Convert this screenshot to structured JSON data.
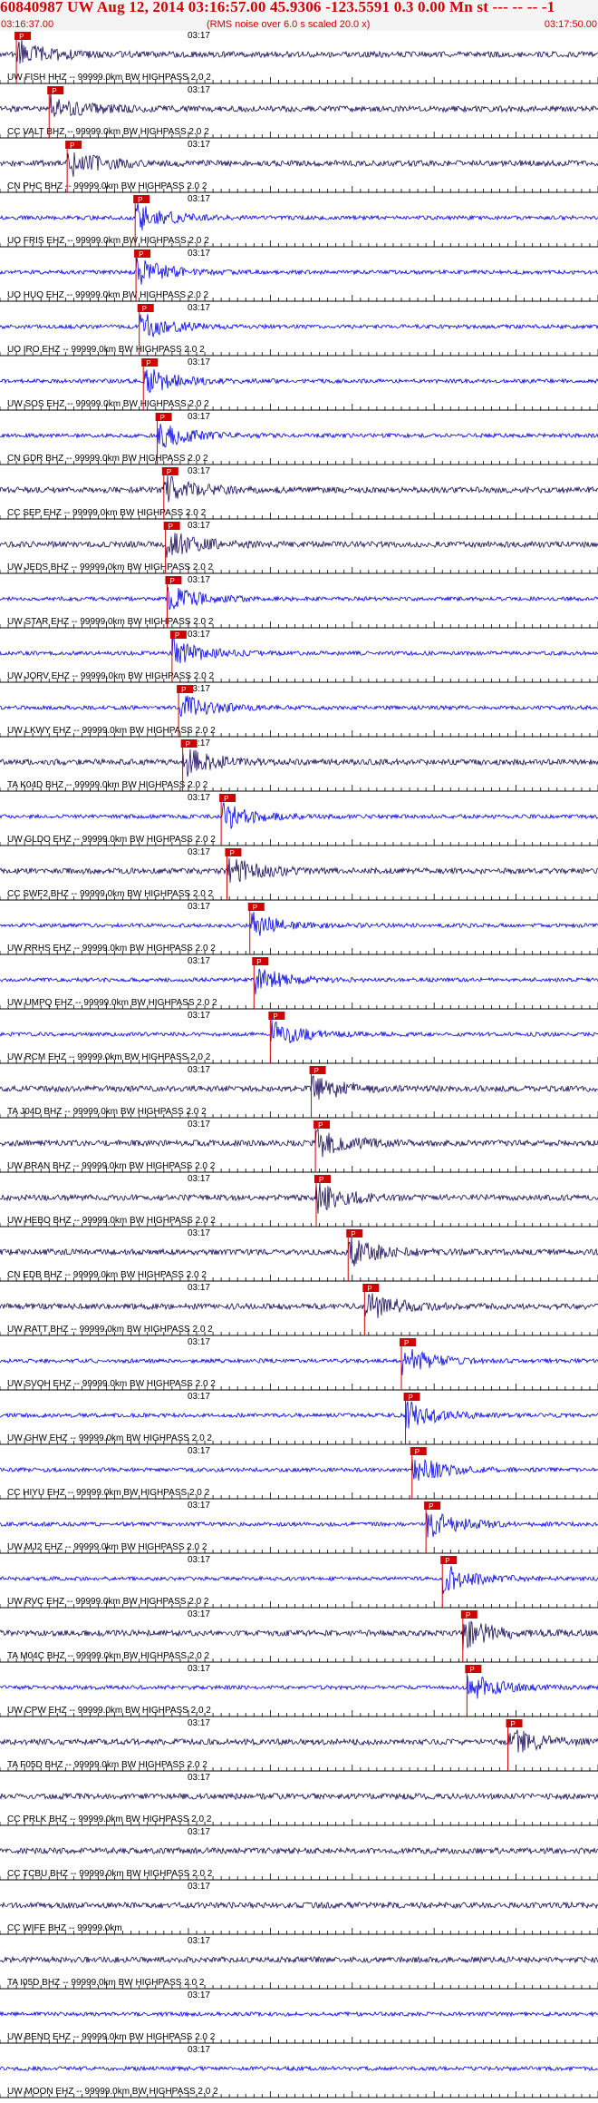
{
  "header": {
    "title": "60840987 UW Aug 12, 2014 03:16:57.00    45.9306 -123.5591  0.3 0.00 Mn st --- -- --  -1",
    "start_time": "03:16:37.00",
    "rms_note": "(RMS noise over 6.0 s scaled 20.0 x)",
    "end_time": "03:17:50.00"
  },
  "chart_data": {
    "type": "line",
    "x_unit": "time",
    "time_window": [
      "03:16:37.00",
      "03:17:50.00"
    ],
    "minute_mark_label": "03:17",
    "grid": "vertical tick lines at 1 s intervals, tall ticks every 10 s",
    "pick_label": "P",
    "colors": {
      "high_amplitude": "#0000ee",
      "low_amplitude": "#1a0a5c",
      "pick_marker": "#d00000",
      "text": "#000000"
    },
    "traces": [
      {
        "label": "UW FISH HHZ -- 99999.0km BW HIGHPASS 2.0 2",
        "pick_s": 2.0,
        "color": "low_amplitude"
      },
      {
        "label": "CC VALT BHZ -- 99999.0km BW HIGHPASS 2.0 2",
        "pick_s": 6.0,
        "color": "low_amplitude"
      },
      {
        "label": "CN PHC BHZ -- 99999.0km BW HIGHPASS 2.0 2",
        "pick_s": 8.2,
        "color": "low_amplitude"
      },
      {
        "label": "UO FRIS EHZ -- 99999.0km BW HIGHPASS 2.0 2",
        "pick_s": 16.5,
        "color": "high_amplitude"
      },
      {
        "label": "UO HUO EHZ -- 99999.0km BW HIGHPASS 2.0 2",
        "pick_s": 16.6,
        "color": "high_amplitude"
      },
      {
        "label": "UO IRO EHZ -- 99999.0km BW HIGHPASS 2.0 2",
        "pick_s": 17.0,
        "color": "high_amplitude"
      },
      {
        "label": "UW SOS EHZ -- 99999.0km BW HIGHPASS 2.0 2",
        "pick_s": 17.5,
        "color": "high_amplitude"
      },
      {
        "label": "CN GDR BHZ -- 99999.0km BW HIGHPASS 2.0 2",
        "pick_s": 19.2,
        "color": "high_amplitude"
      },
      {
        "label": "CC SEP EHZ -- 99999.0km BW HIGHPASS 2.0 2",
        "pick_s": 20.0,
        "color": "low_amplitude"
      },
      {
        "label": "UW JEDS BHZ -- 99999.0km BW HIGHPASS 2.0 2",
        "pick_s": 20.2,
        "color": "low_amplitude"
      },
      {
        "label": "UW STAR EHZ -- 99999.0km BW HIGHPASS 2.0 2",
        "pick_s": 20.4,
        "color": "high_amplitude"
      },
      {
        "label": "UW JORV EHZ -- 99999.0km BW HIGHPASS 2.0 2",
        "pick_s": 21.0,
        "color": "high_amplitude"
      },
      {
        "label": "UW LKWY EHZ -- 99999.0km BW HIGHPASS 2.0 2",
        "pick_s": 21.8,
        "color": "high_amplitude"
      },
      {
        "label": "TA K04D BHZ -- 99999.0km BW HIGHPASS 2.0 2",
        "pick_s": 22.3,
        "color": "low_amplitude"
      },
      {
        "label": "UW GLDO EHZ -- 99999.0km BW HIGHPASS 2.0 2",
        "pick_s": 27.0,
        "color": "high_amplitude"
      },
      {
        "label": "CC SWF2 BHZ -- 99999.0km BW HIGHPASS 2.0 2",
        "pick_s": 27.7,
        "color": "low_amplitude"
      },
      {
        "label": "UW RRHS EHZ -- 99999.0km BW HIGHPASS 2.0 2",
        "pick_s": 30.5,
        "color": "high_amplitude"
      },
      {
        "label": "UW UMPQ EHZ -- 99999.0km BW HIGHPASS 2.0 2",
        "pick_s": 31.0,
        "color": "high_amplitude"
      },
      {
        "label": "UW RCM EHZ -- 99999.0km BW HIGHPASS 2.0 2",
        "pick_s": 33.0,
        "color": "high_amplitude"
      },
      {
        "label": "TA J04D BHZ -- 99999.0km BW HIGHPASS 2.0 2",
        "pick_s": 38.0,
        "color": "low_amplitude"
      },
      {
        "label": "UW BRAN BHZ -- 99999.0km BW HIGHPASS 2.0 2",
        "pick_s": 38.5,
        "color": "low_amplitude"
      },
      {
        "label": "UW HEBO BHZ -- 99999.0km BW HIGHPASS 2.0 2",
        "pick_s": 38.6,
        "color": "low_amplitude"
      },
      {
        "label": "CN EDB BHZ -- 99999.0km BW HIGHPASS 2.0 2",
        "pick_s": 42.5,
        "color": "low_amplitude"
      },
      {
        "label": "UW RATT BHZ -- 99999.0km BW HIGHPASS 2.0 2",
        "pick_s": 44.5,
        "color": "low_amplitude"
      },
      {
        "label": "UW SVOH EHZ -- 99999.0km BW HIGHPASS 2.0 2",
        "pick_s": 49.0,
        "color": "high_amplitude"
      },
      {
        "label": "UW GHW EHZ -- 99999.0km BW HIGHPASS 2.0 2",
        "pick_s": 49.5,
        "color": "high_amplitude"
      },
      {
        "label": "CC HIYU EHZ -- 99999.0km BW HIGHPASS 2.0 2",
        "pick_s": 50.3,
        "color": "high_amplitude"
      },
      {
        "label": "UW MJ2 EHZ -- 99999.0km BW HIGHPASS 2.0 2",
        "pick_s": 52.0,
        "color": "high_amplitude"
      },
      {
        "label": "UW RVC EHZ -- 99999.0km BW HIGHPASS 2.0 2",
        "pick_s": 54.0,
        "color": "high_amplitude"
      },
      {
        "label": "TA M04C BHZ -- 99999.0km BW HIGHPASS 2.0 2",
        "pick_s": 56.5,
        "color": "low_amplitude"
      },
      {
        "label": "UW CPW EHZ -- 99999.0km BW HIGHPASS 2.0 2",
        "pick_s": 57.0,
        "color": "high_amplitude"
      },
      {
        "label": "TA F05D BHZ -- 99999.0km BW HIGHPASS 2.0 2",
        "pick_s": 62.0,
        "color": "low_amplitude"
      },
      {
        "label": "CC PRLK BHZ -- 99999.0km BW HIGHPASS 2.0 2",
        "pick_s": null,
        "color": "low_amplitude"
      },
      {
        "label": "CC TCBU BHZ -- 99999.0km BW HIGHPASS 2.0 2",
        "pick_s": null,
        "color": "low_amplitude"
      },
      {
        "label": "CC WIFE BHZ -- 99999.0km",
        "pick_s": null,
        "color": "low_amplitude"
      },
      {
        "label": "TA I05D BHZ -- 99999.0km BW HIGHPASS 2.0 2",
        "pick_s": null,
        "color": "low_amplitude"
      },
      {
        "label": "UW BEND EHZ -- 99999.0km BW HIGHPASS 2.0 2",
        "pick_s": null,
        "color": "high_amplitude"
      },
      {
        "label": "UW MOON EHZ -- 99999.0km BW HIGHPASS 2.0 2",
        "pick_s": null,
        "color": "high_amplitude"
      }
    ]
  }
}
